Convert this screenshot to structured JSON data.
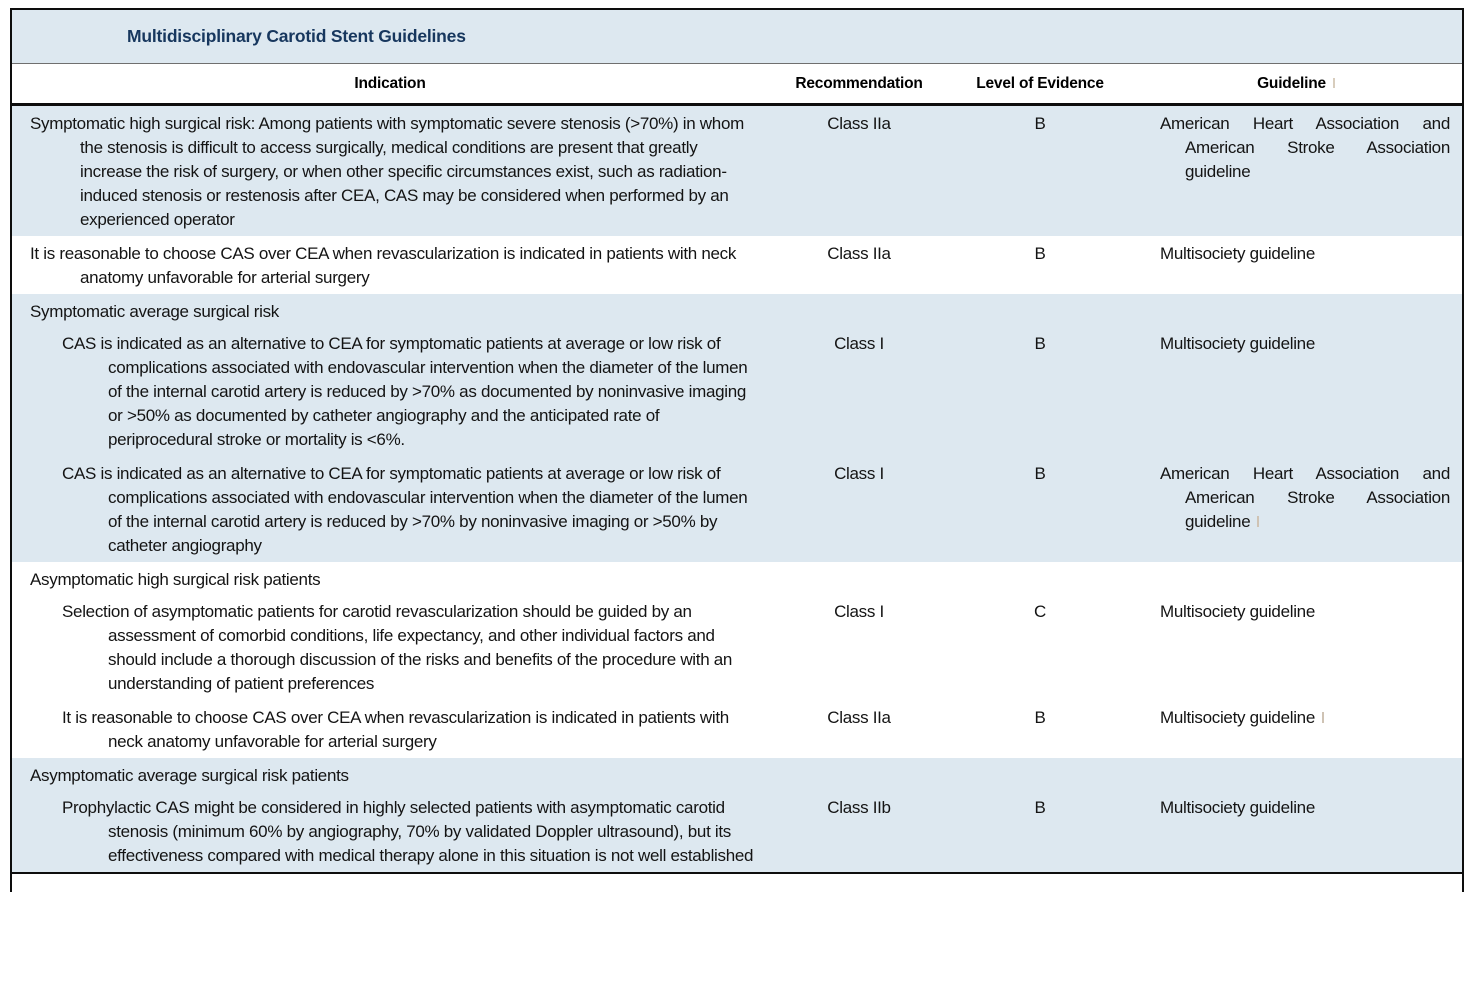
{
  "colors": {
    "band": "#dde8f0",
    "title_text": "#17375e",
    "rule": "#0d0d0d"
  },
  "table": {
    "title": "Multidisciplinary Carotid Stent Guidelines",
    "columns": {
      "indication": "Indication",
      "recommendation": "Recommendation",
      "evidence": "Level of Evidence",
      "guideline": "Guideline"
    },
    "guideline_header_has_mark": true,
    "groups": [
      {
        "shaded": true,
        "header": null,
        "rows": [
          {
            "indent": 0,
            "indication": "Symptomatic high surgical risk: Among patients with symptomatic severe stenosis (>70%) in whom the stenosis is difficult to access surgically, medical conditions are present that greatly increase the risk of surgery, or when other specific circumstances exist, such as radiation-induced stenosis or restenosis after CEA, CAS may be considered when performed by an experienced operator",
            "recommendation": "Class IIa",
            "evidence": "B",
            "guideline": "American Heart Association and American Stroke Association guideline",
            "mark": false
          }
        ]
      },
      {
        "shaded": false,
        "header": null,
        "rows": [
          {
            "indent": 0,
            "indication": "It is reasonable to choose CAS over CEA when revascularization is indicated in patients with neck anatomy unfavorable for arterial surgery",
            "recommendation": "Class IIa",
            "evidence": "B",
            "guideline": "Multisociety guideline",
            "mark": false
          }
        ]
      },
      {
        "shaded": true,
        "header": "Symptomatic average surgical risk",
        "rows": [
          {
            "indent": 1,
            "indication": "CAS is indicated as an alternative to CEA for symptomatic patients at average or low risk of complications associated with endovascular intervention when the diameter of the lumen of the internal carotid artery is reduced by >70% as documented by noninvasive imaging or >50% as documented by catheter angiography and the anticipated rate of periprocedural stroke or mortality is <6%.",
            "recommendation": "Class I",
            "evidence": "B",
            "guideline": "Multisociety guideline",
            "mark": false
          },
          {
            "indent": 1,
            "indication": "CAS is indicated as an alternative to CEA for symptomatic patients at average or low risk of complications associated with endovascular intervention when the diameter of the lumen of the internal carotid artery is reduced by >70% by noninvasive imaging or >50% by catheter angiography",
            "recommendation": "Class I",
            "evidence": "B",
            "guideline": "American Heart Association and American Stroke Association guideline",
            "mark": true
          }
        ]
      },
      {
        "shaded": false,
        "header": "Asymptomatic high surgical risk patients",
        "rows": [
          {
            "indent": 1,
            "indication": "Selection of asymptomatic patients for carotid revascularization should be guided by an assessment of comorbid conditions, life expectancy, and other individual factors and should include a thorough discussion of the risks and benefits of the procedure with an understanding of patient preferences",
            "recommendation": "Class I",
            "evidence": "C",
            "guideline": "Multisociety guideline",
            "mark": false
          },
          {
            "indent": 1,
            "indication": "It is reasonable to choose CAS over CEA when revascularization is indicated in patients with neck anatomy unfavorable for arterial surgery",
            "recommendation": "Class IIa",
            "evidence": "B",
            "guideline": "Multisociety guideline",
            "mark": true
          }
        ]
      },
      {
        "shaded": true,
        "header": "Asymptomatic average surgical risk patients",
        "rows": [
          {
            "indent": 1,
            "indication": "Prophylactic CAS might be considered in highly selected patients with asymptomatic carotid stenosis (minimum 60% by angiography, 70% by validated Doppler ultrasound), but its effectiveness compared with medical therapy alone in this situation is not well established",
            "recommendation": "Class IIb",
            "evidence": "B",
            "guideline": "Multisociety guideline",
            "mark": false
          }
        ]
      }
    ]
  }
}
